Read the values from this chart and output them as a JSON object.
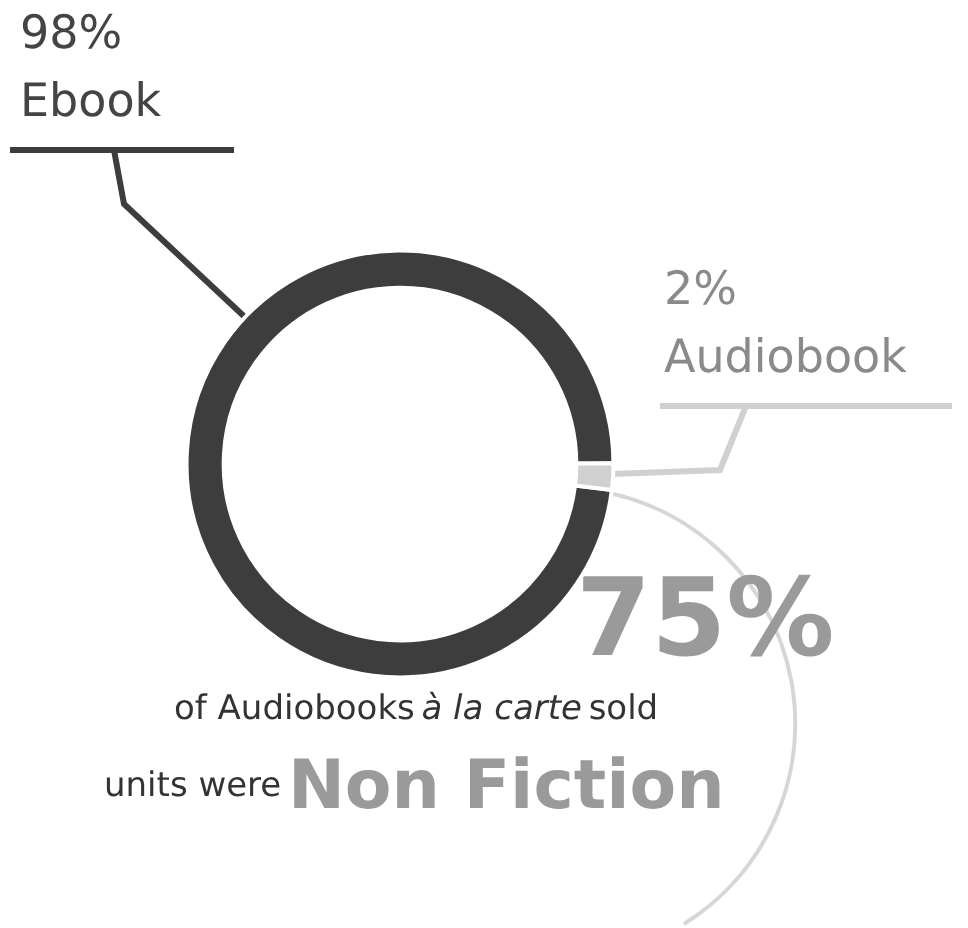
{
  "chart_data": {
    "type": "donut",
    "categories": [
      "Ebook",
      "Audiobook"
    ],
    "values": [
      98,
      2
    ],
    "colors": [
      "#3d3d3d",
      "#d0d0d0"
    ],
    "value_labels": [
      "98%",
      "2%"
    ],
    "annotations": [
      "75%",
      "of Audiobooks",
      "à la carte",
      "sold",
      "units were",
      "Non Fiction"
    ]
  }
}
